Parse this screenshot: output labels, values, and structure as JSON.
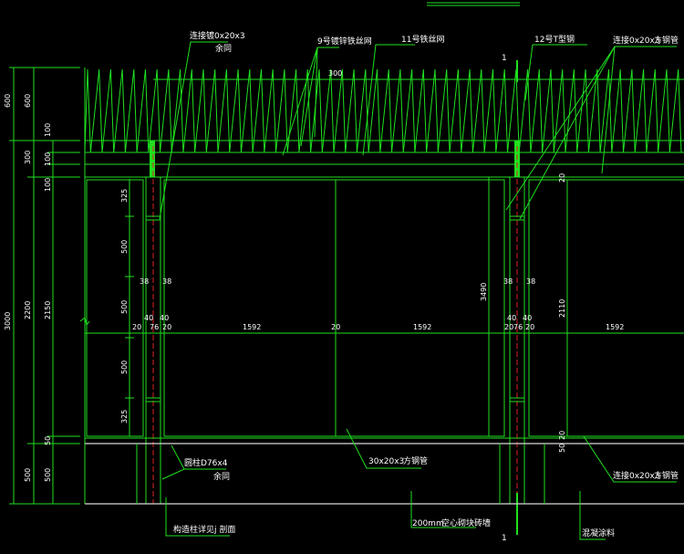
{
  "drawing": {
    "colors": {
      "line": "#1fe01f",
      "text": "#ffffff",
      "centerline": "#e02020",
      "mesh": "#d8d8d8",
      "background": "#000000"
    },
    "section_mark": "1",
    "callouts": {
      "connector_top": "连接镀0x20x3",
      "same_top": "余同",
      "wire_9": "9号镀锌铁丝网",
      "wire_11": "11号铁丝网",
      "tsteel_12": "12号T型钢",
      "rail_top": "连接0x20x3",
      "square_tube_top": "方钢管",
      "spacing_300": "300",
      "tube_30x20": "30x20x3",
      "tube_30x20_type": "方钢管",
      "post": "圆柱D76x4",
      "same_bottom": "余同",
      "column_ref": "构造柱详见j 剖面",
      "wall_size": "200mm",
      "wall_type": "空心砌块砖墙",
      "rail_bottom": "连接0x20x3",
      "square_tube_bottom": "方钢管",
      "coating": "混凝涂料"
    },
    "dims_left": {
      "outer_top": "600",
      "outer_total": "3000",
      "mid_top": "600",
      "mid_300": "300",
      "mid_2200": "2200",
      "mid_500": "500",
      "inner_100a": "100",
      "inner_100b": "100",
      "inner_100c": "100",
      "inner_2150": "2150",
      "inner_50": "50",
      "inner_500": "500"
    },
    "dims_panel": {
      "d325a": "325",
      "d500a": "500",
      "d500b": "500",
      "d500c": "500",
      "d325b": "325"
    },
    "dims_post": {
      "d38": "38",
      "d40": "40",
      "d20": "20",
      "d76": "76"
    },
    "dims_width": {
      "panel": "1592",
      "gap": "20"
    },
    "dims_right": {
      "height_3490": "3490",
      "height_2110": "2110",
      "top_20": "20",
      "bottom_20": "20",
      "bottom_50": "50"
    }
  }
}
